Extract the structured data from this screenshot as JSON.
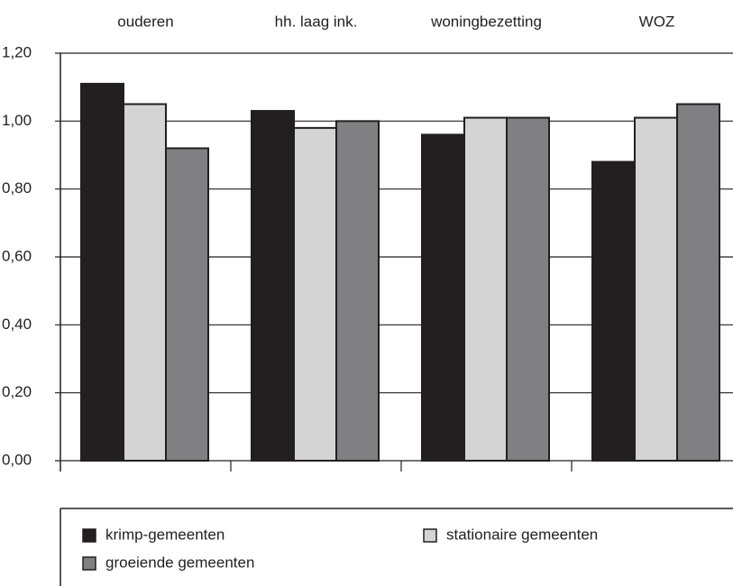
{
  "chart_data": {
    "type": "bar",
    "categories": [
      "ouderen",
      "hh. laag ink.",
      "woningbezetting",
      "WOZ"
    ],
    "series": [
      {
        "name": "krimp-gemeenten",
        "color": "#231f20",
        "values": [
          1.11,
          1.03,
          0.96,
          0.88
        ]
      },
      {
        "name": "stationaire gemeenten",
        "color": "#d4d4d4",
        "values": [
          1.05,
          0.98,
          1.01,
          1.01
        ]
      },
      {
        "name": "groeiende gemeenten",
        "color": "#808083",
        "values": [
          0.92,
          1.0,
          1.01,
          1.05
        ]
      }
    ],
    "ylim": [
      0,
      1.2
    ],
    "yticks": [
      {
        "value": 0,
        "label": "0,00"
      },
      {
        "value": 0.2,
        "label": "0,20"
      },
      {
        "value": 0.4,
        "label": "0,40"
      },
      {
        "value": 0.6,
        "label": "0,60"
      },
      {
        "value": 0.8,
        "label": "0,80"
      },
      {
        "value": 1.0,
        "label": "1,00"
      },
      {
        "value": 1.2,
        "label": "1,20"
      }
    ],
    "grid": true
  }
}
